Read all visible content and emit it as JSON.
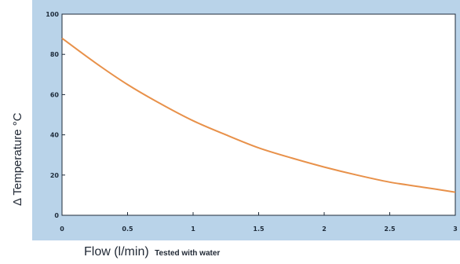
{
  "chart_data": {
    "type": "line",
    "title": "",
    "xlabel": "Flow (l/min)",
    "xlabel_note": "Tested with water",
    "ylabel": "Δ  Temperature °C",
    "xlim": [
      0,
      3
    ],
    "ylim": [
      0,
      100
    ],
    "xticks": [
      "0",
      "0.5",
      "1",
      "1.5",
      "2",
      "2.5",
      "3"
    ],
    "yticks": [
      "0",
      "20",
      "40",
      "60",
      "80",
      "100"
    ],
    "grid": false,
    "series": [
      {
        "color": "#e8914a",
        "x": [
          0,
          0.25,
          0.5,
          0.75,
          1.0,
          1.25,
          1.5,
          1.75,
          2.0,
          2.25,
          2.5,
          2.75,
          3.0
        ],
        "y": [
          88,
          76,
          65,
          55.5,
          47,
          40,
          33.5,
          28.5,
          24,
          20,
          16.5,
          14,
          11.5
        ]
      }
    ],
    "colors": {
      "background_band": "#b9d3e9",
      "plot_area": "#ffffff",
      "axis": "#1e2b3a"
    }
  }
}
